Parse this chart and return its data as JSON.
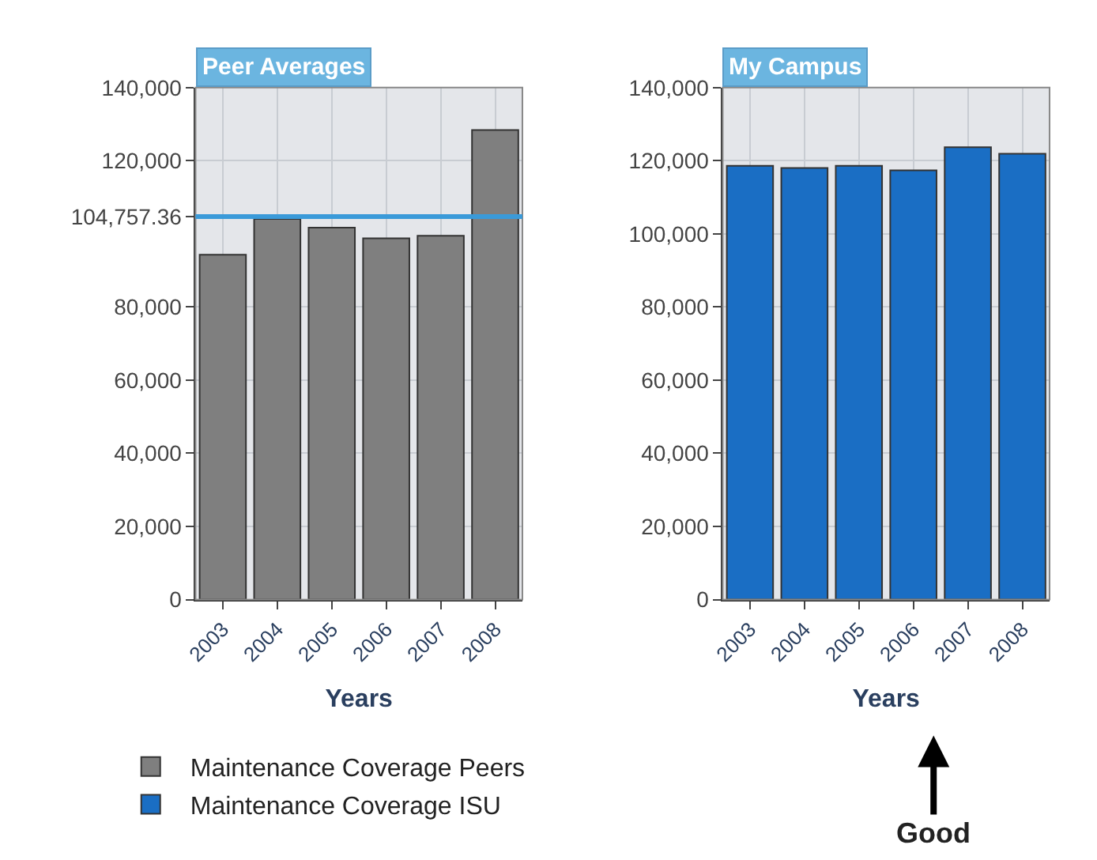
{
  "chart_data": [
    {
      "type": "bar",
      "title": "Peer Averages",
      "xlabel": "Years",
      "categories": [
        "2003",
        "2004",
        "2005",
        "2006",
        "2007",
        "2008"
      ],
      "series": [
        {
          "name": "Maintenance Coverage Peers",
          "color": "#7f7f7f",
          "values": [
            94300,
            104100,
            101700,
            98800,
            99500,
            128400
          ]
        }
      ],
      "ylim": [
        0,
        140000
      ],
      "yticks": [
        0,
        {
          "value": 20000,
          "label": "20,000"
        },
        {
          "value": 40000,
          "label": "40,000"
        },
        {
          "value": 60000,
          "label": "60,000"
        },
        {
          "value": 80000,
          "label": "80,000"
        },
        {
          "value": 104757.36,
          "label": "104,757.36"
        },
        {
          "value": 120000,
          "label": "120,000"
        },
        {
          "value": 140000,
          "label": "140,000"
        }
      ],
      "ref_lines": [
        {
          "axis": "y",
          "value": 104757.36,
          "color": "#3a9ad9"
        }
      ],
      "grid": true,
      "legend": "bottom"
    },
    {
      "type": "bar",
      "title": "My Campus",
      "xlabel": "Years",
      "categories": [
        "2003",
        "2004",
        "2005",
        "2006",
        "2007",
        "2008"
      ],
      "series": [
        {
          "name": "Maintenance Coverage ISU",
          "color": "#1a6ec4",
          "values": [
            118600,
            118000,
            118600,
            117400,
            123700,
            121900
          ]
        }
      ],
      "ylim": [
        0,
        140000
      ],
      "yticks": [
        0,
        {
          "value": 20000,
          "label": "20,000"
        },
        {
          "value": 40000,
          "label": "40,000"
        },
        {
          "value": 60000,
          "label": "60,000"
        },
        {
          "value": 80000,
          "label": "80,000"
        },
        {
          "value": 100000,
          "label": "100,000"
        },
        {
          "value": 120000,
          "label": "120,000"
        },
        {
          "value": 140000,
          "label": "140,000"
        }
      ],
      "annotations": [
        "Good"
      ],
      "grid": true,
      "legend": "bottom"
    }
  ]
}
